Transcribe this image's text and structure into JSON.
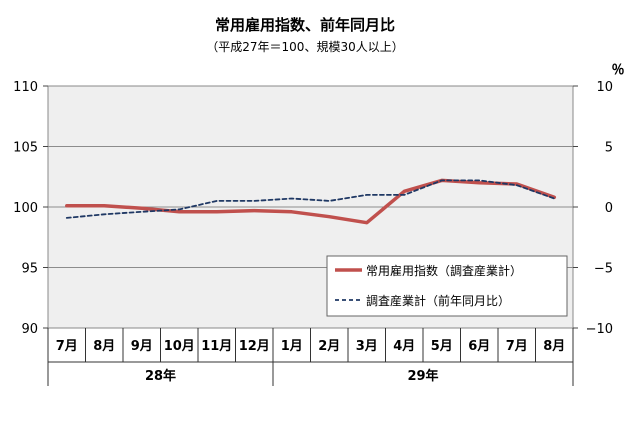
{
  "chart_data": {
    "type": "line",
    "title": "常用雇用指数、前年同月比",
    "subtitle": "（平成27年＝100、規模30人以上）",
    "y2_unit": "％",
    "categories": [
      "7月",
      "8月",
      "9月",
      "10月",
      "11月",
      "12月",
      "1月",
      "2月",
      "3月",
      "4月",
      "5月",
      "6月",
      "7月",
      "8月"
    ],
    "year_groups": [
      {
        "label": "28年",
        "start": 0,
        "end": 5
      },
      {
        "label": "29年",
        "start": 6,
        "end": 13
      }
    ],
    "ylim": [
      90,
      110
    ],
    "y_ticks": [
      "90",
      "95",
      "100",
      "105",
      "110"
    ],
    "y2lim": [
      -10,
      10
    ],
    "y2_ticks": [
      "−10",
      "−5",
      "0",
      "5",
      "10"
    ],
    "series": [
      {
        "name": "常用雇用指数（調査産業計）",
        "axis": "left",
        "color": "#c0504d",
        "style": "solid",
        "values": [
          100.1,
          100.1,
          99.9,
          99.6,
          99.6,
          99.7,
          99.6,
          99.2,
          98.7,
          101.3,
          102.2,
          102.0,
          101.9,
          100.8
        ]
      },
      {
        "name": "調査産業計（前年同月比）",
        "axis": "right",
        "color": "#1f3864",
        "style": "dashed",
        "values": [
          -0.9,
          -0.6,
          -0.4,
          -0.2,
          0.5,
          0.5,
          0.7,
          0.5,
          1.0,
          1.0,
          2.2,
          2.2,
          1.8,
          0.7
        ]
      }
    ],
    "grid": true,
    "legend_position": "bottom-right"
  }
}
